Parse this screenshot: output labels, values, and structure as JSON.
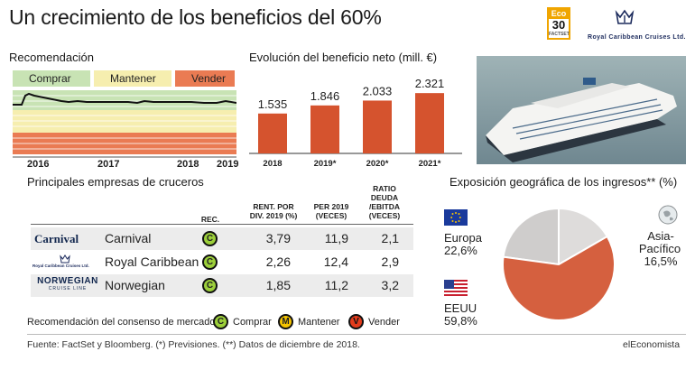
{
  "title": "Un crecimiento de los beneficios del 60%",
  "logos": {
    "eco_top": "Eco",
    "eco_num": "30",
    "eco_bottom": "FACTSET",
    "royal_caribbean": "Royal Caribbean Cruises Ltd."
  },
  "recommendation": {
    "heading": "Recomendación",
    "legend": [
      "Comprar",
      "Mantener",
      "Vender"
    ],
    "colors": {
      "comprar": "#c8e3b4",
      "mantener": "#f6eeaf",
      "vender": "#ea7b53"
    },
    "x_labels": [
      "2016",
      "2017",
      "2018",
      "2019"
    ]
  },
  "chart_data": [
    {
      "type": "bar",
      "title": "Evolución del beneficio neto (mill. €)",
      "categories": [
        "2018",
        "2019*",
        "2020*",
        "2021*"
      ],
      "values": [
        1535,
        1846,
        2033,
        2321
      ],
      "value_labels": [
        "1.535",
        "1.846",
        "2.033",
        "2.321"
      ],
      "color": "#d5532e",
      "ylim": [
        0,
        2500
      ]
    },
    {
      "type": "pie",
      "title": "Exposición geográfica de los ingresos** (%)",
      "slices": [
        {
          "name": "Europa",
          "value": 22.6,
          "label": "22,6%",
          "color": "#cfcdcc"
        },
        {
          "name": "Asia-Pacífico",
          "value": 16.5,
          "label": "16,5%",
          "color": "#dedcdb"
        },
        {
          "name": "EEUU",
          "value": 59.8,
          "label": "59,8%",
          "color": "#d5603f"
        }
      ],
      "donut": true
    }
  ],
  "table": {
    "heading": "Principales empresas de cruceros",
    "columns": [
      "REC.",
      "RENT. POR\nDIV. 2019 (%)",
      "PER 2019\n(VECES)",
      "RATIO\nDEUDA\n/EBITDA\n(VECES)"
    ],
    "rows": [
      {
        "logo": "Carnival",
        "name": "Carnival",
        "rec": "C",
        "div": "3,79",
        "per": "11,9",
        "ratio": "2,1"
      },
      {
        "logo": "Royal Caribbean Cruises Ltd.",
        "name": "Royal Caribbean",
        "rec": "C",
        "div": "2,26",
        "per": "12,4",
        "ratio": "2,9"
      },
      {
        "logo": "NORWEGIAN",
        "logo_sub": "CRUISE LINE",
        "name": "Norwegian",
        "rec": "C",
        "div": "1,85",
        "per": "11,2",
        "ratio": "3,2"
      }
    ]
  },
  "consensus": {
    "label": "Recomendación del consenso de mercado:",
    "items": [
      {
        "letter": "C",
        "text": "Comprar",
        "color": "#9ccf3a"
      },
      {
        "letter": "M",
        "text": "Mantener",
        "color": "#f5c400"
      },
      {
        "letter": "V",
        "text": "Vender",
        "color": "#e33b1b"
      }
    ]
  },
  "pie_labels": {
    "europa_name": "Europa",
    "europa_val": "22,6%",
    "asia_name1": "Asia-",
    "asia_name2": "Pacífico",
    "asia_val": "16,5%",
    "eeuu_name": "EEUU",
    "eeuu_val": "59,8%"
  },
  "footer": {
    "source": "Fuente: FactSet y Bloomberg.  (*) Previsiones. (**) Datos de diciembre de 2018.",
    "brand": "elEconomista"
  }
}
